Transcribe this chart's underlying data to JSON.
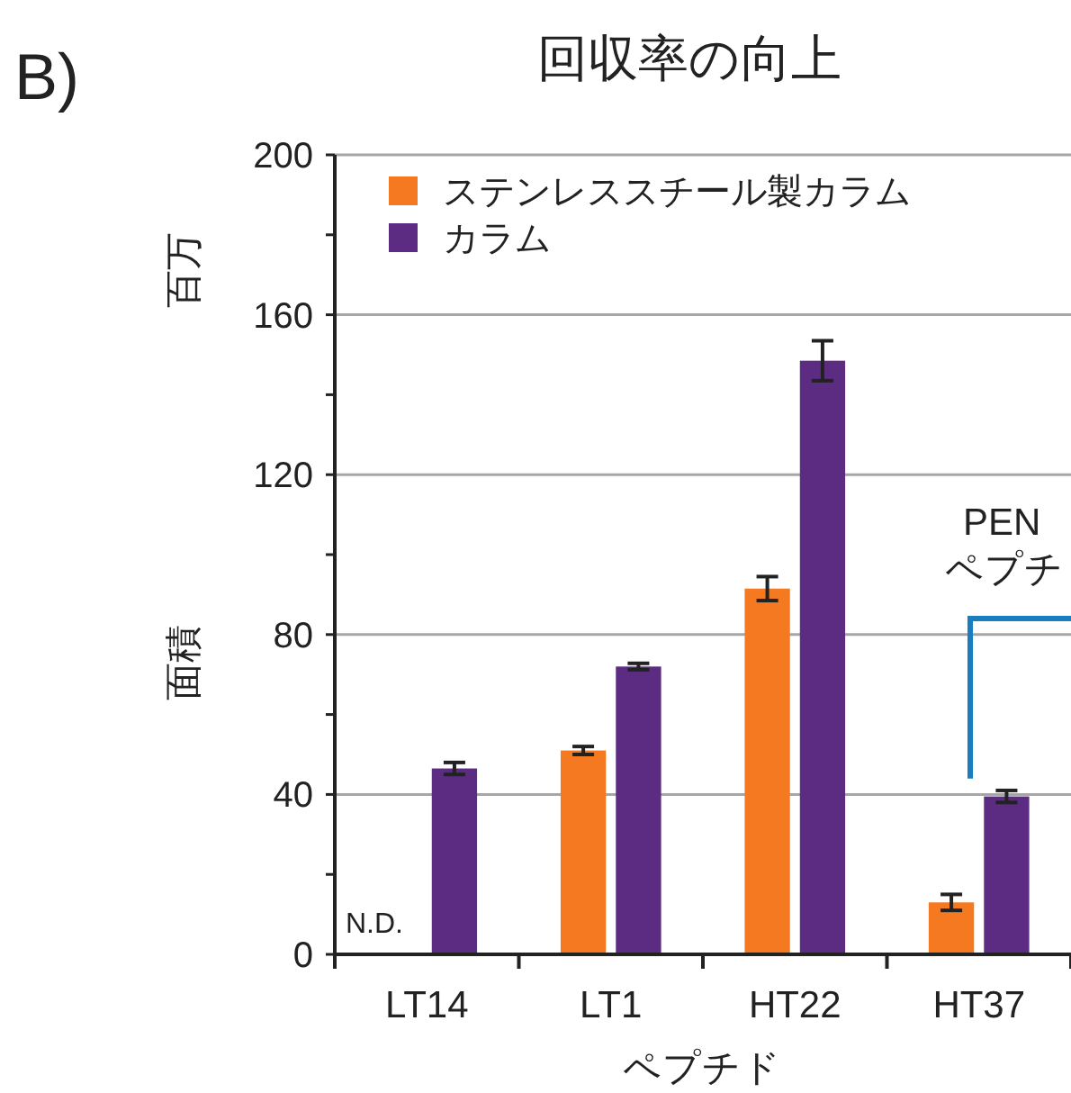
{
  "chart_data": {
    "type": "bar",
    "title": "回収率の向上",
    "xlabel": "ペプチド",
    "ylabel": "面積",
    "annotations": [
      "B)",
      "百万",
      {
        "text": "N.D.",
        "x": "LT14",
        "y": 0
      },
      "PEN\nペプチ"
    ],
    "categories": [
      "LT14",
      "LT1",
      "HT22",
      "HT37"
    ],
    "series": [
      {
        "name": "ステンレススチール製カラム",
        "color": "#f47920",
        "values": [
          null,
          51,
          91.5,
          13
        ],
        "errors": [
          null,
          1,
          3,
          2
        ]
      },
      {
        "name": "カラム",
        "color": "#5b2c82",
        "values": [
          46.5,
          72,
          148.5,
          39.5
        ],
        "errors": [
          1.5,
          0.8,
          5,
          1.5
        ]
      }
    ],
    "ylim": [
      0,
      200
    ],
    "yticks": [
      0,
      {
        "value": 20,
        "label": null
      },
      40,
      {
        "value": 60,
        "label": null
      },
      80,
      {
        "value": 100,
        "label": null
      },
      120,
      {
        "value": 140,
        "label": null
      },
      160,
      {
        "value": 180,
        "label": null
      },
      200
    ],
    "grid": "y",
    "legend": "top left"
  }
}
